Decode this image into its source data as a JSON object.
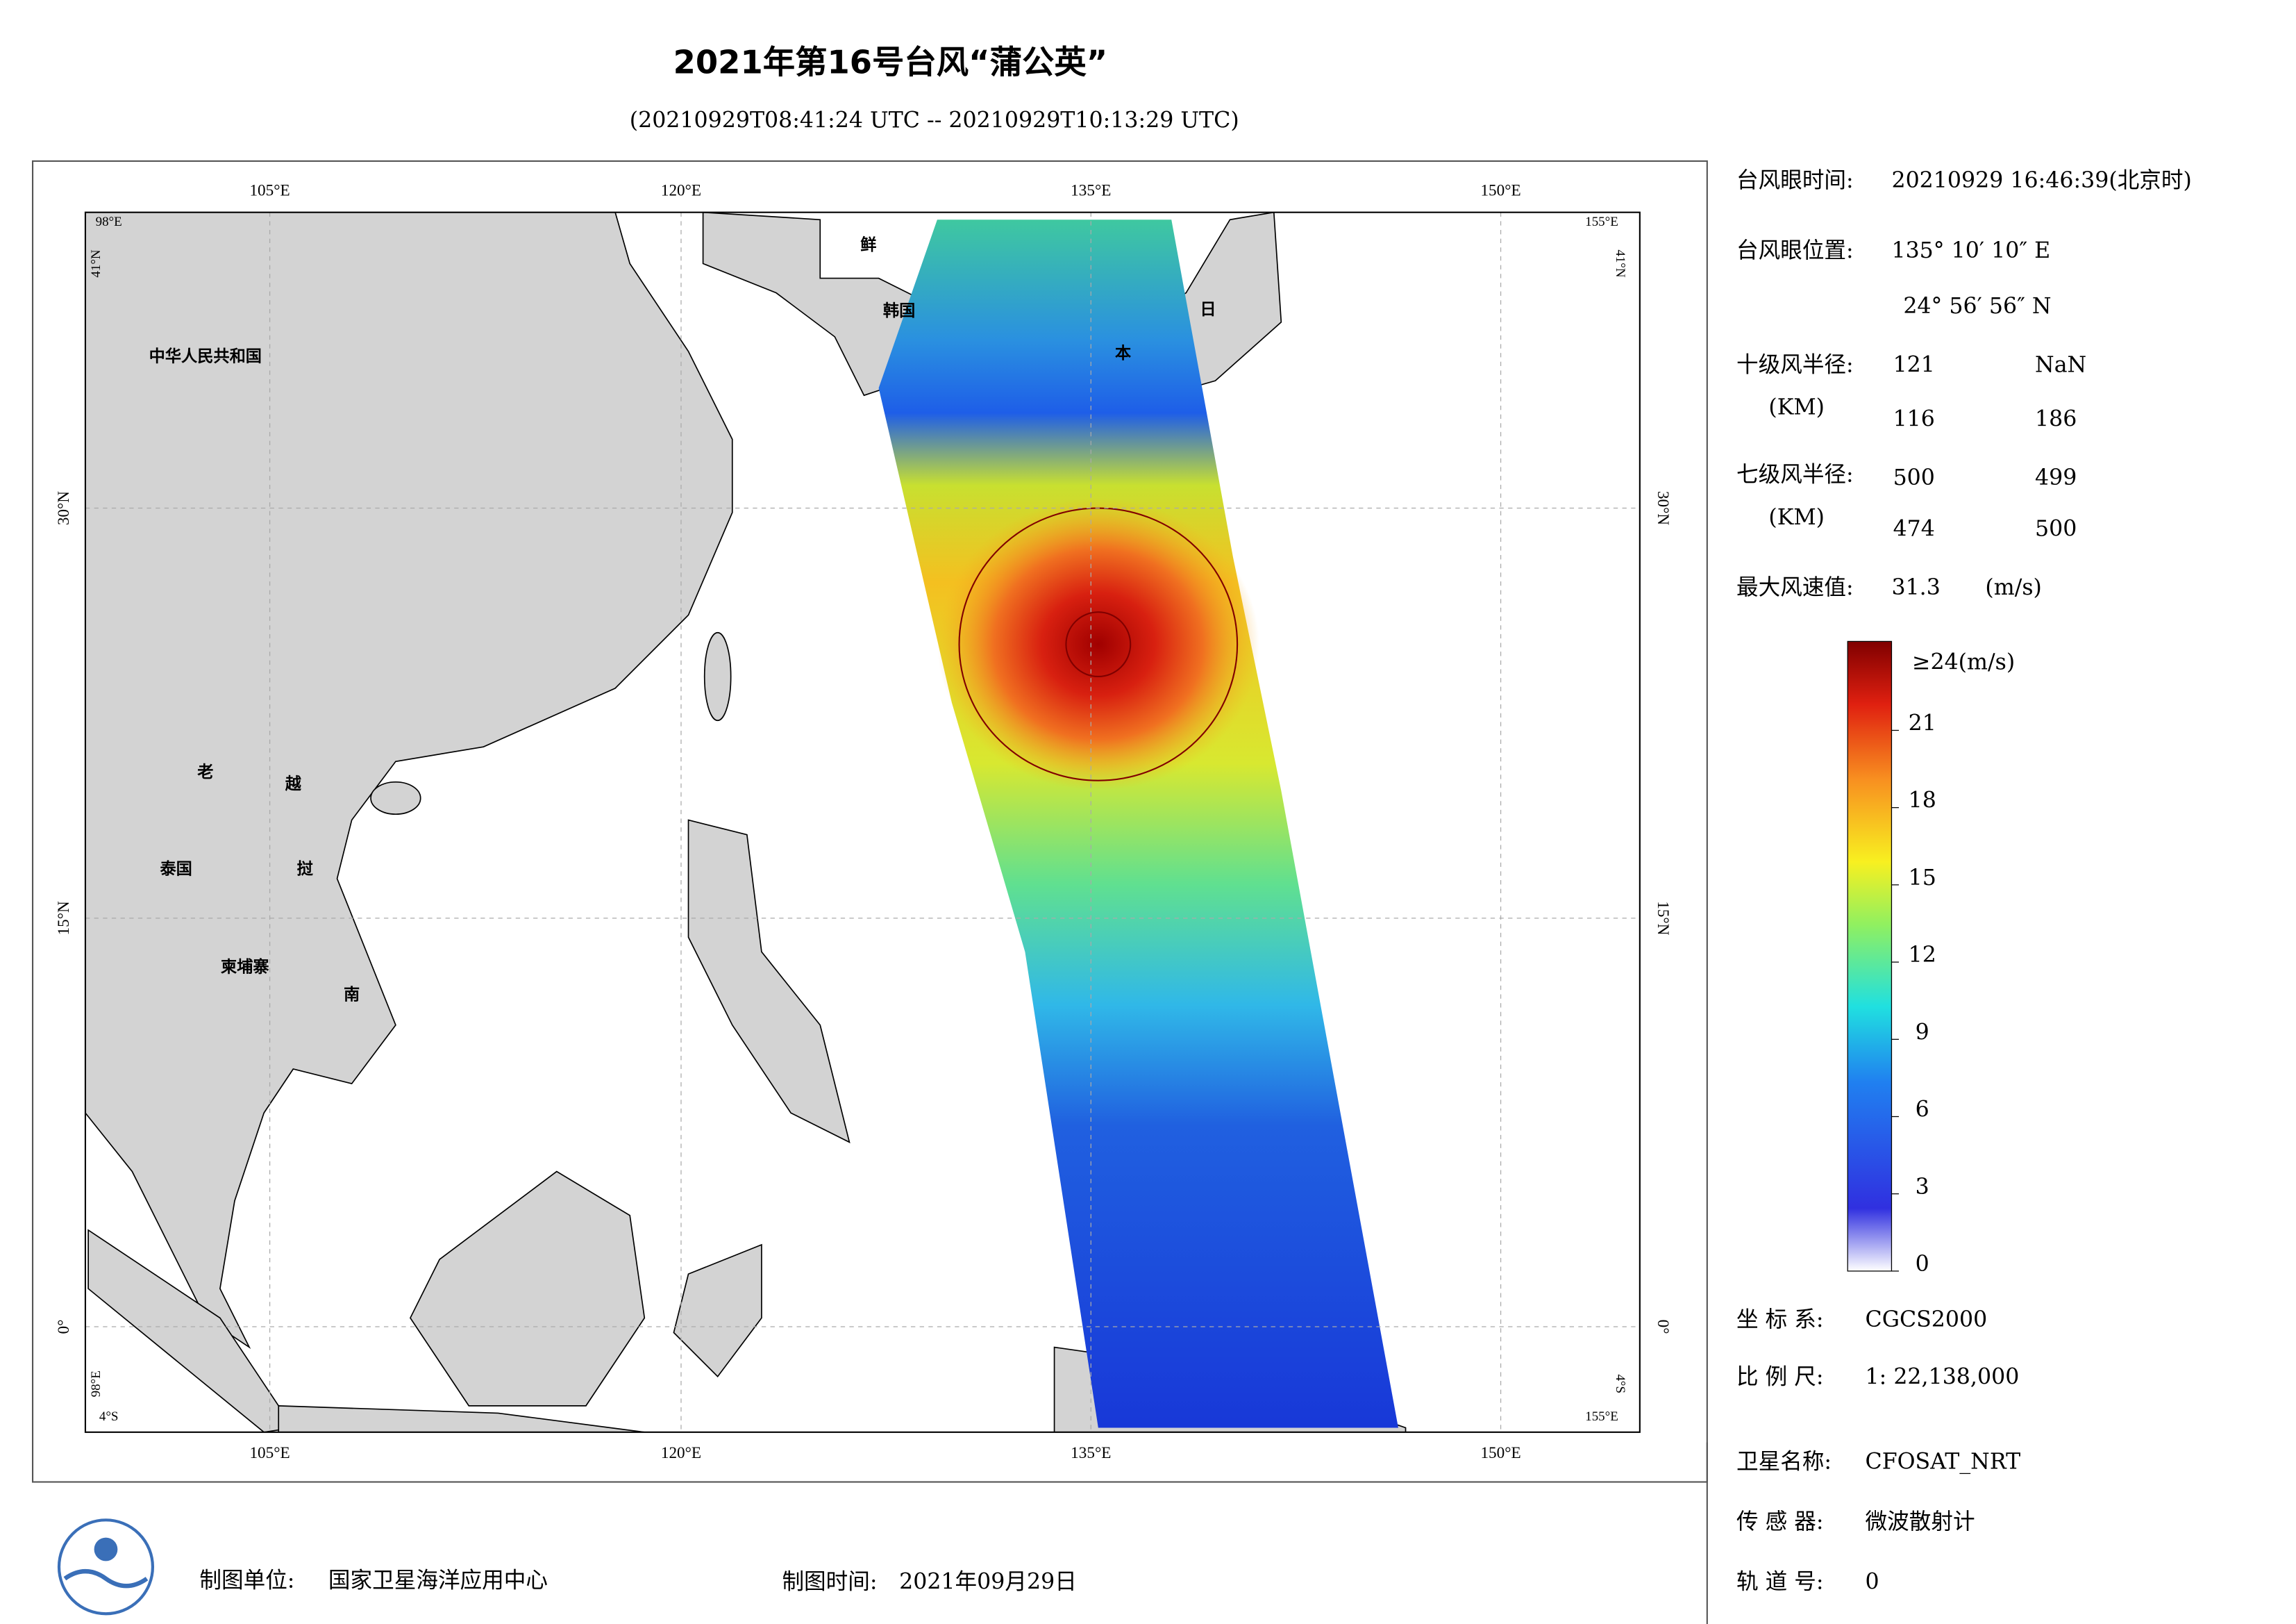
{
  "header": {
    "title": "2021年第16号台风“蒲公英”",
    "subtitle": "(20210929T08:41:24 UTC -- 20210929T10:13:29 UTC)"
  },
  "map": {
    "top_lon_labels": [
      "105°E",
      "120°E",
      "135°E",
      "150°E"
    ],
    "bottom_lon_labels": [
      "105°E",
      "120°E",
      "135°E",
      "150°E"
    ],
    "left_lat_labels": [
      "30°N",
      "15°N",
      "0°"
    ],
    "right_lat_labels": [
      "30°N",
      "15°N",
      "0°"
    ],
    "corner_labels": {
      "top_left_lon": "98°E",
      "top_left_lat": "41°N",
      "top_right_lon": "155°E",
      "top_right_lat": "41°N",
      "bottom_left_lon": "98°E",
      "bottom_left_lat": "4°S",
      "bottom_right_lon": "155°E",
      "bottom_right_lat": "4°S"
    },
    "place_labels": [
      "中华人民共和国",
      "老",
      "越",
      "泰国",
      "挝",
      "柬埔寨",
      "南",
      "鲜",
      "韩国",
      "日",
      "本"
    ]
  },
  "info": {
    "eye_time": {
      "label": "台风眼时间:",
      "value": "20210929 16:46:39(北京时)"
    },
    "eye_position": {
      "label": "台风眼位置:",
      "lon": "135° 10′ 10″ E",
      "lat": "24° 56′ 56″ N"
    },
    "radius_10": {
      "label": "十级风半径:",
      "unit": "(KM)",
      "values": [
        121,
        "NaN",
        116,
        186
      ]
    },
    "radius_7": {
      "label": "七级风半径:",
      "unit": "(KM)",
      "values": [
        500,
        499,
        474,
        500
      ]
    },
    "max_wind": {
      "label": "最大风速值:",
      "value": 31.3,
      "unit": "(m/s)"
    }
  },
  "colorbar": {
    "lim": [
      0,
      24
    ],
    "ticks": [
      0,
      3,
      6,
      9,
      12,
      15,
      18,
      21
    ],
    "top_label": "≥24(m/s)"
  },
  "meta": {
    "crs": {
      "label": "坐 标 系:",
      "value": "CGCS2000"
    },
    "scale": {
      "label": "比 例 尺:",
      "value": "1: 22,138,000"
    },
    "satellite": {
      "label": "卫星名称:",
      "value": "CFOSAT_NRT"
    },
    "sensor": {
      "label": "传 感 器:",
      "value": "微波散射计"
    },
    "orbit": {
      "label": "轨 道 号:",
      "value": 0
    }
  },
  "footer": {
    "producer_label": "制图单位:",
    "producer": "国家卫星海洋应用中心",
    "date_label": "制图时间:",
    "date": "2021年09月29日"
  }
}
